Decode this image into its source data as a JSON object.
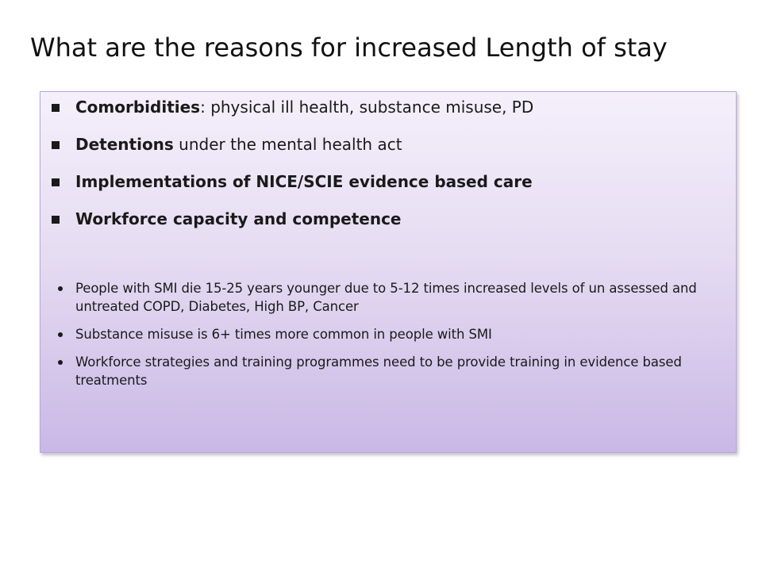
{
  "slide": {
    "title": "What are the reasons for increased Length of stay"
  },
  "primary_bullets": [
    {
      "bold": "Comorbidities",
      "rest": ": physical ill health, substance misuse, PD"
    },
    {
      "bold": "Detentions",
      "rest": " under the mental health act"
    },
    {
      "bold": "Implementations of NICE/SCIE evidence based care",
      "rest": ""
    },
    {
      "bold": "Workforce capacity and competence",
      "rest": ""
    }
  ],
  "secondary_bullets": [
    {
      "text": "People with SMI die 15-25 years younger due to 5-12 times increased levels of un assessed and untreated COPD, Diabetes, High BP, Cancer"
    },
    {
      "text": "Substance misuse is 6+ times more common in people with SMI"
    },
    {
      "text": "Workforce strategies and training programmes need to be provide training in evidence based treatments"
    }
  ],
  "colors": {
    "box_top": "#f4f0fb",
    "box_bottom": "#c9b8e6",
    "box_border": "#b9a8d8"
  }
}
